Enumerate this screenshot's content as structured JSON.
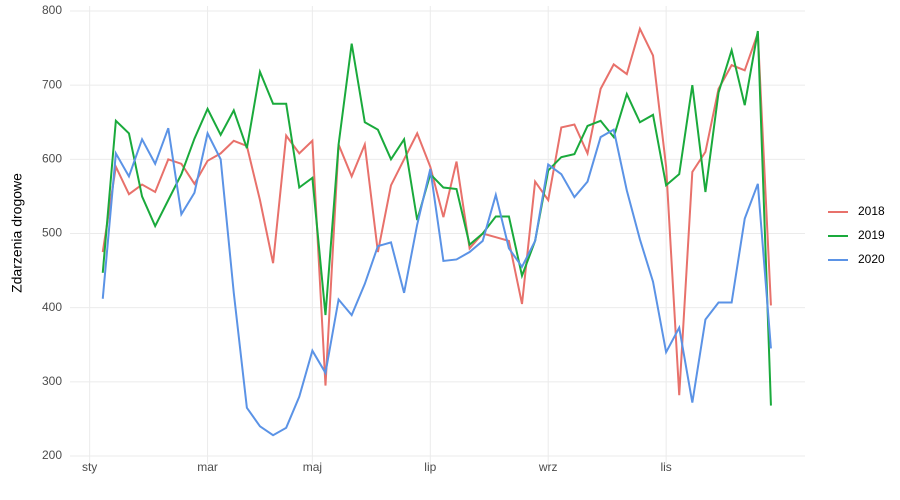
{
  "chart_data": {
    "type": "line",
    "y_label": "Zdarzenia drogowe",
    "x": [
      1,
      2,
      3,
      4,
      5,
      6,
      7,
      8,
      9,
      10,
      11,
      12,
      13,
      14,
      15,
      16,
      17,
      18,
      19,
      20,
      21,
      22,
      23,
      24,
      25,
      26,
      27,
      28,
      29,
      30,
      31,
      32,
      33,
      34,
      35,
      36,
      37,
      38,
      39,
      40,
      41,
      42,
      43,
      44,
      45,
      46,
      47,
      48,
      49,
      50,
      51,
      52
    ],
    "xlim": [
      -1.5,
      54.6
    ],
    "xticks": [
      {
        "value": 0,
        "label": "sty"
      },
      {
        "value": 9,
        "label": "mar"
      },
      {
        "value": 17,
        "label": "maj"
      },
      {
        "value": 26,
        "label": "lip"
      },
      {
        "value": 35,
        "label": "wrz"
      },
      {
        "value": 44,
        "label": "lis"
      }
    ],
    "ylim": [
      200,
      800
    ],
    "yticks": [
      200,
      300,
      400,
      500,
      600,
      700,
      800
    ],
    "grid": true,
    "legend": "right",
    "series": [
      {
        "name": "2018",
        "color": "#e8716b",
        "values": [
          475,
          590,
          553,
          566,
          556,
          600,
          594,
          567,
          598,
          608,
          625,
          618,
          545,
          460,
          632,
          608,
          625,
          295,
          620,
          577,
          620,
          475,
          565,
          600,
          635,
          590,
          522,
          597,
          480,
          500,
          495,
          490,
          405,
          570,
          545,
          643,
          647,
          608,
          695,
          728,
          715,
          776,
          740,
          590,
          282,
          583,
          610,
          695,
          727,
          720,
          770,
          403
        ]
      },
      {
        "name": "2019",
        "color": "#1aaa3c",
        "values": [
          447,
          652,
          635,
          550,
          510,
          545,
          580,
          628,
          668,
          633,
          666,
          615,
          718,
          675,
          675,
          562,
          575,
          390,
          620,
          756,
          650,
          640,
          600,
          627,
          518,
          580,
          562,
          560,
          485,
          500,
          523,
          523,
          443,
          490,
          585,
          603,
          607,
          645,
          652,
          630,
          688,
          650,
          660,
          565,
          580,
          700,
          556,
          690,
          747,
          673,
          773,
          268
        ]
      },
      {
        "name": "2020",
        "color": "#5b93e6",
        "values": [
          412,
          608,
          577,
          627,
          594,
          642,
          526,
          555,
          635,
          600,
          420,
          265,
          240,
          228,
          238,
          280,
          342,
          312,
          411,
          390,
          432,
          483,
          488,
          420,
          512,
          587,
          463,
          465,
          475,
          490,
          552,
          480,
          455,
          490,
          593,
          580,
          549,
          570,
          630,
          640,
          558,
          492,
          435,
          340,
          373,
          272,
          384,
          407,
          407,
          520,
          567,
          345
        ]
      }
    ]
  }
}
